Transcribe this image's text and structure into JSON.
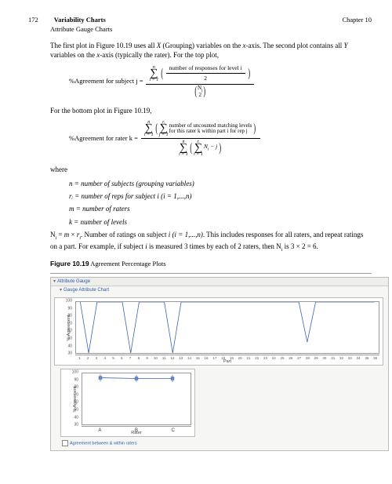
{
  "header": {
    "page_number": "172",
    "title": "Variability Charts",
    "chapter": "Chapter 10",
    "subtitle": "Attribute Gauge Charts"
  },
  "text": {
    "intro": "The first plot in Figure 10.19 uses all X (Grouping) variables on the x-axis. The second plot contains all Y variables on the x-axis (typically the rater). For the top plot,",
    "eq1_lhs": "%Agreement for subject j  =",
    "eq1_num_inner": "number of responses for level i",
    "bottom_intro": "For the bottom plot in Figure 10.19,",
    "eq2_lhs": "%Agreement for rater k  =",
    "eq2_num_inner1": "number of uncounted matching levels",
    "eq2_num_inner2": "for this rater k within part i for rep j",
    "where": "where",
    "def_n": "n = number of subjects (grouping variables)",
    "def_ri": "rᵢ = number of reps for subject i (i = 1,...,n)",
    "def_m": "m = number of raters",
    "def_k": "k = number of levels",
    "def_ni_a": "Nᵢ = m × rᵢ. Number of ratings on subject i (i = 1,...,n). This includes responses for all raters, and repeat ratings on a part. For example, if subject i is measured 3 times by each of 2 raters, then Nᵢ is 3 × 2 = 6.",
    "fig_caption_bold": "Figure 10.19",
    "fig_caption_rest": " Agreement Percentage Plots"
  },
  "chart": {
    "section1": "Attribute Gauge",
    "section2": "Gauge Attribute Chart",
    "ylabel": "% Agreement",
    "xlabel1": "Part",
    "xlabel2": "Rater",
    "yticks": [
      "100",
      "90",
      "80",
      "70",
      "60",
      "50",
      "40",
      "30"
    ],
    "yticks2": [
      "100",
      "90",
      "80",
      "70",
      "60",
      "50",
      "40",
      "30"
    ],
    "xtick_count": 36,
    "xticks2": [
      "A",
      "B",
      "C"
    ],
    "series1_y": [
      100,
      30,
      100,
      100,
      100,
      100,
      30,
      100,
      100,
      100,
      100,
      30,
      100,
      100,
      100,
      100,
      100,
      100,
      100,
      100,
      100,
      100,
      100,
      100,
      100,
      100,
      100,
      45,
      100,
      100,
      100,
      100,
      100,
      100,
      100,
      100
    ],
    "series2_y": [
      94,
      93,
      93
    ],
    "series2_err": [
      5,
      5,
      5
    ],
    "colors": {
      "line": "#3a63b0",
      "marker_fill": "#6d88c4",
      "axis": "#777777",
      "box_bg": "#f6f6f4"
    },
    "legend": "Agreement between & within raters"
  }
}
